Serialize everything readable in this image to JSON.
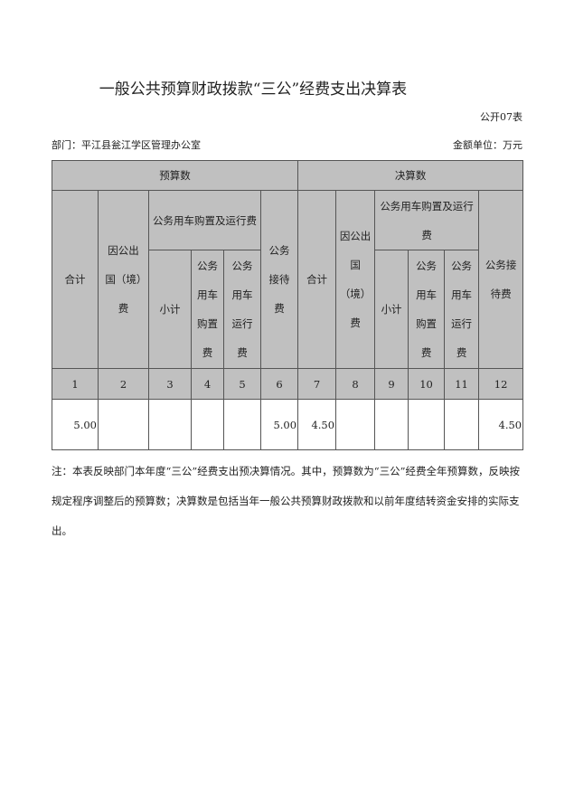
{
  "title": "一般公共预算财政拨款“三公”经费支出决算表",
  "table_no": "公开07表",
  "department": "部门：平江县瓮江学区管理办公室",
  "unit": "金额单位：万元",
  "groups": {
    "budget": "预算数",
    "final": "决算数"
  },
  "headers": {
    "total": "合计",
    "abroad": "因公出国（境）费",
    "car": "公务用车购置及运行费",
    "subtotal": "小计",
    "car_purchase": "公务用车购置费",
    "car_run": "公务用车运行费",
    "reception": "公务接待费"
  },
  "col_numbers": [
    "1",
    "2",
    "3",
    "4",
    "5",
    "6",
    "7",
    "8",
    "9",
    "10",
    "11",
    "12"
  ],
  "values": [
    "5.00",
    "",
    "",
    "",
    "",
    "5.00",
    "4.50",
    "",
    "",
    "",
    "",
    "4.50"
  ],
  "note": "注：本表反映部门本年度“三公”经费支出预决算情况。其中，预算数为“三公”经费全年预算数，反映按规定程序调整后的预算数；决算数是包括当年一般公共预算财政拨款和以前年度结转资金安排的实际支出。"
}
